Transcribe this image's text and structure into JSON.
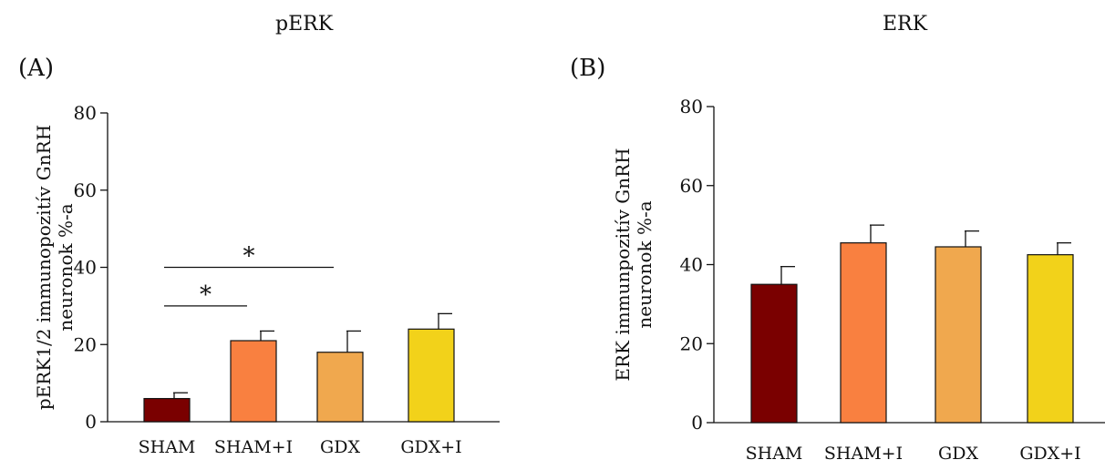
{
  "chart_data": [
    {
      "type": "bar",
      "panel": "(A)",
      "title": "pERK",
      "ylabel_lines": [
        "pERK1/2 immunopozitív GnRH",
        "neuronok %-a"
      ],
      "categories": [
        "SHAM",
        "SHAM+I",
        "GDX",
        "GDX+I"
      ],
      "values": [
        6,
        21,
        18,
        24
      ],
      "errors": [
        1.5,
        2.5,
        5.5,
        4
      ],
      "colors": [
        "#7a0000",
        "#f98040",
        "#f0a84e",
        "#f2d21a"
      ],
      "ylim": [
        0,
        80
      ],
      "yticks": [
        0,
        20,
        40,
        60,
        80
      ],
      "significance": [
        {
          "from": 0,
          "to": 1,
          "y": 30,
          "label": "*"
        },
        {
          "from": 0,
          "to": 2,
          "y": 40,
          "label": "*"
        }
      ]
    },
    {
      "type": "bar",
      "panel": "(B)",
      "title": "ERK",
      "ylabel_lines": [
        "ERK immunpozitív GnRH",
        "neuronok %-a"
      ],
      "categories": [
        "SHAM",
        "SHAM+I",
        "GDX",
        "GDX+I"
      ],
      "values": [
        35,
        45.5,
        44.5,
        42.5
      ],
      "errors": [
        4.5,
        4.5,
        4,
        3
      ],
      "colors": [
        "#7a0000",
        "#f98040",
        "#f0a84e",
        "#f2d21a"
      ],
      "ylim": [
        0,
        80
      ],
      "yticks": [
        0,
        20,
        40,
        60,
        80
      ],
      "significance": []
    }
  ]
}
